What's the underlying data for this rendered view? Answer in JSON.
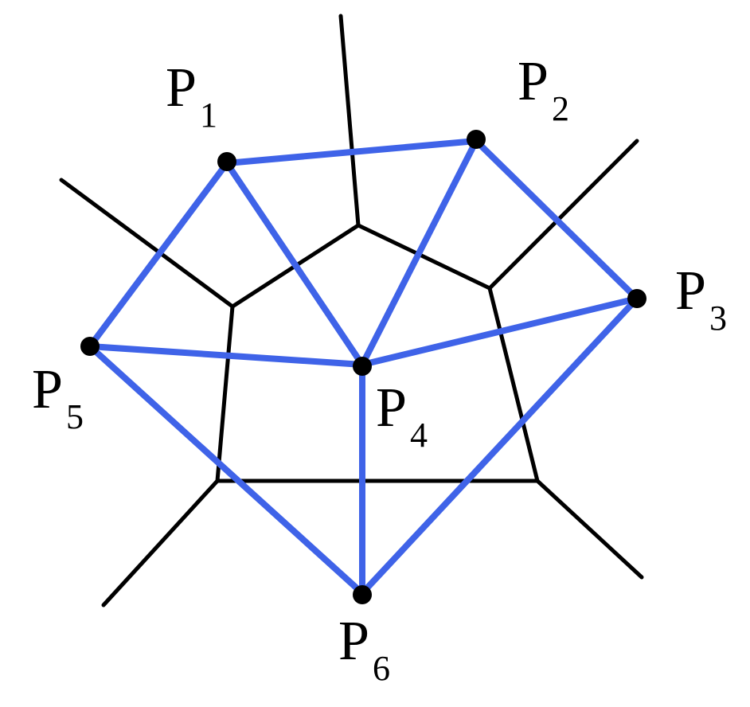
{
  "diagram": {
    "colors": {
      "voronoi_edge": "#000000",
      "delaunay_edge": "#3F63E8",
      "point": "#000000",
      "background": "#FFFFFF"
    },
    "points": [
      {
        "id": "p1",
        "label": "P",
        "subscript": "1"
      },
      {
        "id": "p2",
        "label": "P",
        "subscript": "2"
      },
      {
        "id": "p3",
        "label": "P",
        "subscript": "3"
      },
      {
        "id": "p4",
        "label": "P",
        "subscript": "4"
      },
      {
        "id": "p5",
        "label": "P",
        "subscript": "5"
      },
      {
        "id": "p6",
        "label": "P",
        "subscript": "6"
      }
    ]
  }
}
